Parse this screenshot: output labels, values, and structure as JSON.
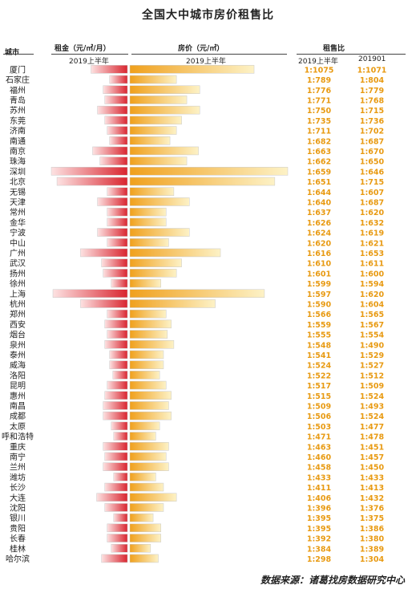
{
  "title": "全国大中城市房价租售比",
  "headers": {
    "city": "城市",
    "rent": "租金（元/㎡/月）",
    "rent_period": "2019上半年",
    "price": "房价（元/㎡）",
    "price_period": "2019上半年",
    "ratio": "租售比",
    "ratio_p1": "2019上半年",
    "ratio_p2": "201901"
  },
  "source": "数据来源：诸葛找房数据研究中心",
  "colors": {
    "rent_dark": "#d9252f",
    "rent_light": "#fde2e2",
    "price_dark": "#f0a01c",
    "price_light": "#fdf2c6",
    "ratio_text": "#e89a12"
  },
  "chart_data": {
    "type": "bar",
    "title": "全国大中城市房价租售比",
    "series_labels": [
      "租金（元/㎡/月）",
      "房价（元/㎡）"
    ],
    "categories": [
      "厦门",
      "石家庄",
      "福州",
      "青岛",
      "苏州",
      "东莞",
      "济南",
      "南通",
      "南京",
      "珠海",
      "深圳",
      "北京",
      "无锡",
      "天津",
      "常州",
      "金华",
      "宁波",
      "中山",
      "广州",
      "武汉",
      "扬州",
      "徐州",
      "上海",
      "杭州",
      "郑州",
      "西安",
      "烟台",
      "泉州",
      "泰州",
      "威海",
      "洛阳",
      "昆明",
      "惠州",
      "南昌",
      "成都",
      "太原",
      "呼和浩特",
      "重庆",
      "南宁",
      "兰州",
      "潍坊",
      "长沙",
      "大连",
      "沈阳",
      "银川",
      "贵阳",
      "长春",
      "桂林",
      "哈尔滨"
    ],
    "rent": [
      45,
      22,
      30,
      28,
      37,
      28,
      25,
      22,
      43,
      34,
      94,
      87,
      25,
      37,
      25,
      25,
      37,
      25,
      58,
      32,
      30,
      20,
      92,
      58,
      25,
      28,
      25,
      28,
      22,
      22,
      18,
      25,
      28,
      30,
      30,
      20,
      17,
      30,
      28,
      30,
      17,
      28,
      38,
      28,
      17,
      25,
      25,
      20,
      32
    ],
    "price": [
      48000,
      18000,
      27000,
      22000,
      27000,
      20000,
      18000,
      15500,
      26500,
      22000,
      61000,
      56000,
      17000,
      23000,
      14000,
      14000,
      23000,
      15000,
      35000,
      20000,
      18000,
      12000,
      52000,
      33000,
      14000,
      16000,
      14500,
      17000,
      13000,
      13000,
      11500,
      14000,
      16000,
      15000,
      16000,
      11500,
      10000,
      15000,
      14000,
      15000,
      10000,
      13000,
      18000,
      13000,
      9000,
      12000,
      12000,
      8000,
      11000
    ],
    "ratio_2019H1": [
      "1:1075",
      "1:789",
      "1:776",
      "1:771",
      "1:750",
      "1:735",
      "1:711",
      "1:682",
      "1:663",
      "1:662",
      "1:659",
      "1:651",
      "1:644",
      "1:640",
      "1:637",
      "1:626",
      "1:624",
      "1:620",
      "1:616",
      "1:610",
      "1:601",
      "1:599",
      "1:597",
      "1:590",
      "1:566",
      "1:559",
      "1:555",
      "1:548",
      "1:541",
      "1:524",
      "1:522",
      "1:517",
      "1:515",
      "1:509",
      "1:506",
      "1:503",
      "1:471",
      "1:463",
      "1:460",
      "1:458",
      "1:433",
      "1:411",
      "1:406",
      "1:396",
      "1:395",
      "1:395",
      "1:392",
      "1:384",
      "1:298"
    ],
    "ratio_201901": [
      "1:1071",
      "1:804",
      "1:779",
      "1:768",
      "1:715",
      "1:736",
      "1:702",
      "1:687",
      "1:670",
      "1:650",
      "1:646",
      "1:715",
      "1:607",
      "1:687",
      "1:620",
      "1:632",
      "1:619",
      "1:621",
      "1:653",
      "1:611",
      "1:600",
      "1:594",
      "1:620",
      "1:604",
      "1:565",
      "1:567",
      "1:554",
      "1:490",
      "1:529",
      "1:527",
      "1:512",
      "1:509",
      "1:524",
      "1:493",
      "1:524",
      "1:477",
      "1:478",
      "1:451",
      "1:457",
      "1:450",
      "1:433",
      "1:413",
      "1:432",
      "1:376",
      "1:375",
      "1:386",
      "1:380",
      "1:389",
      "1:304"
    ]
  }
}
